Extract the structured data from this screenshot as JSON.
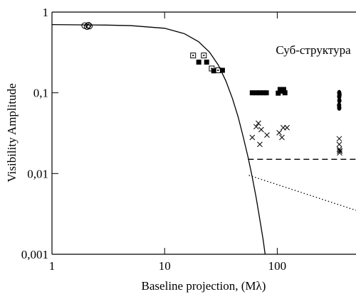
{
  "chart_data": {
    "type": "scatter",
    "x_label": "Baseline projection, (Mλ)",
    "y_label": "Visibility Amplitude",
    "annotation": "Суб-структура",
    "log_x": true,
    "log_y": true,
    "xlim": [
      1,
      500
    ],
    "ylim": [
      0.001,
      1
    ],
    "xticks": [
      1,
      10,
      100
    ],
    "yticks": [
      1,
      {
        "value": 0.1,
        "label": "0,1"
      },
      {
        "value": 0.01,
        "label": "0,01"
      },
      {
        "value": 0.001,
        "label": "0,001"
      }
    ],
    "color": "#000000",
    "series": [
      {
        "marker": "circle-open",
        "x": [
          1.95,
          2.05,
          2.1,
          2.15
        ],
        "values": [
          0.68,
          0.66,
          0.69,
          0.67
        ]
      },
      {
        "marker": "square-dotted",
        "x": [
          17.9,
          22.3,
          26.2,
          29.8
        ],
        "values": [
          0.29,
          0.29,
          0.2,
          0.19
        ]
      },
      {
        "marker": "square",
        "x": [
          20.1,
          23.6,
          27.3,
          32.6,
          60,
          65,
          70,
          75,
          80,
          102,
          106,
          110,
          114,
          117
        ],
        "values": [
          0.24,
          0.24,
          0.187,
          0.19,
          0.1,
          0.1,
          0.1,
          0.1,
          0.1,
          0.099,
          0.11,
          0.105,
          0.11,
          0.1
        ]
      },
      {
        "marker": "circle",
        "x": [
          355,
          355,
          356,
          357,
          355,
          354
        ],
        "values": [
          0.1,
          0.09,
          0.08,
          0.095,
          0.065,
          0.07
        ]
      },
      {
        "marker": "cross",
        "x": [
          60,
          65,
          68,
          72,
          81,
          70,
          104,
          110,
          113,
          122,
          355,
          355,
          356,
          357,
          358,
          360
        ],
        "values": [
          0.028,
          0.038,
          0.042,
          0.035,
          0.03,
          0.023,
          0.032,
          0.028,
          0.037,
          0.037,
          0.027,
          0.023,
          0.02,
          0.019,
          0.018,
          0.019
        ]
      },
      {
        "line": "solid",
        "x": [
          1,
          3,
          5,
          10,
          15,
          20,
          25,
          30,
          35,
          40,
          45,
          50,
          55,
          60,
          65,
          70,
          75,
          78
        ],
        "values": [
          0.7,
          0.69,
          0.68,
          0.63,
          0.54,
          0.43,
          0.32,
          0.22,
          0.14,
          0.085,
          0.05,
          0.028,
          0.016,
          0.009,
          0.005,
          0.0027,
          0.0015,
          0.001
        ]
      },
      {
        "line": "dashed",
        "x": [
          55,
          500
        ],
        "values": [
          0.015,
          0.015
        ]
      },
      {
        "line": "dotted",
        "x": [
          56,
          500
        ],
        "values": [
          0.0095,
          0.0035
        ]
      }
    ]
  }
}
